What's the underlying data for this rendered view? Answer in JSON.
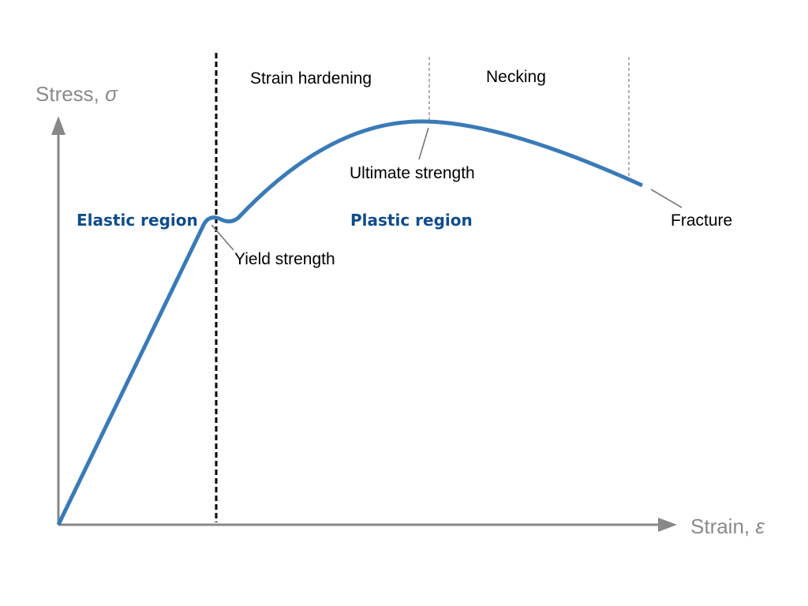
{
  "axes": {
    "y_label_prefix": "Stress, ",
    "y_symbol": "σ",
    "x_label_prefix": "Strain, ",
    "x_symbol": "ε"
  },
  "regions": {
    "elastic": "Elastic region",
    "plastic": "Plastic region"
  },
  "zones": {
    "strain_hardening": "Strain hardening",
    "necking": "Necking"
  },
  "points": {
    "yield_strength": "Yield strength",
    "ultimate_strength": "Ultimate strength",
    "fracture": "Fracture"
  },
  "colors": {
    "curve": "#3a7ab7",
    "region_text": "#0f4c8a",
    "axis": "#888888"
  }
}
